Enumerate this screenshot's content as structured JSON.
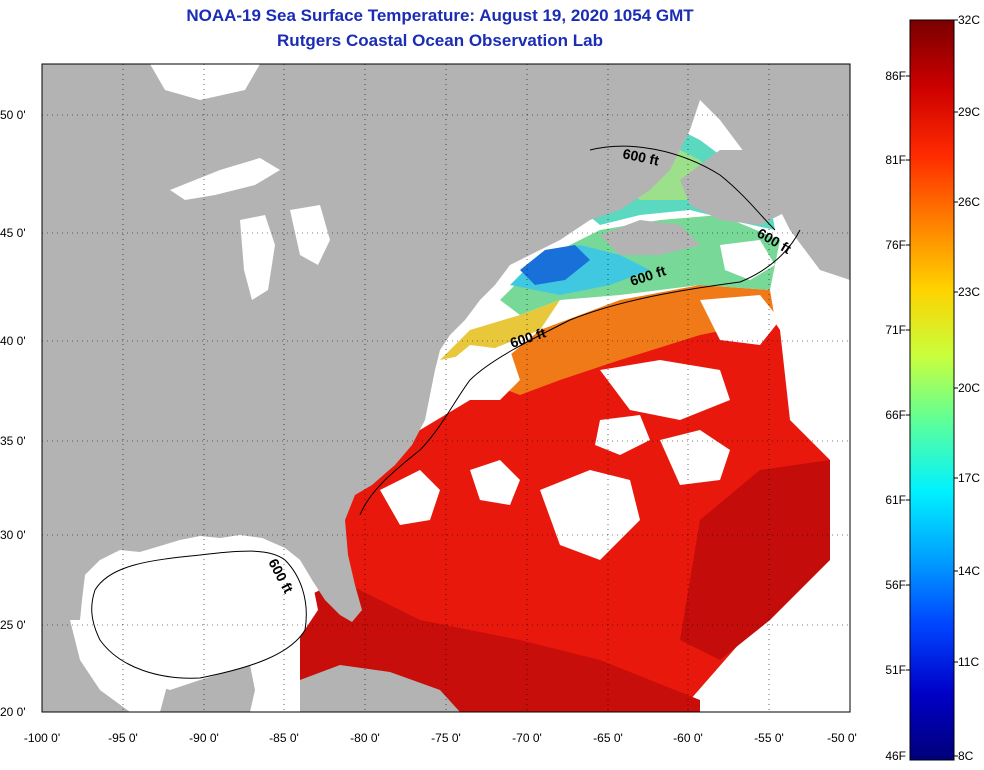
{
  "title_line1": "NOAA-19 Sea Surface Temperature:  August 19, 2020 1054 GMT",
  "title_line2": "Rutgers Coastal Ocean Observation Lab",
  "map": {
    "lat_labels": [
      "50 0'",
      "45 0'",
      "40 0'",
      "35 0'",
      "30 0'",
      "25 0'",
      "20 0'"
    ],
    "lon_labels": [
      "-100 0'",
      "-95 0'",
      "-90 0'",
      "-85 0'",
      "-80 0'",
      "-75 0'",
      "-70 0'",
      "-65 0'",
      "-60 0'",
      "-55 0'",
      "-50 0'"
    ],
    "contour_labels": [
      "600 ft",
      "600 ft",
      "600 ft",
      "600 ft",
      "600 ft"
    ],
    "colors": {
      "land": "#b3b3b3",
      "cloud": "#ffffff",
      "warm": "#e8180c",
      "hot": "#c80e0a",
      "orange": "#f07a18",
      "yellow": "#e8e23a",
      "green": "#7ce07a",
      "cyan": "#38d8e8",
      "blue": "#1870d8",
      "navy": "#0c2a9c"
    }
  },
  "colorbar": {
    "celsius_labels": [
      "32C",
      "29C",
      "26C",
      "23C",
      "20C",
      "17C",
      "14C",
      "11C",
      "8C"
    ],
    "fahrenheit_labels": [
      "86F",
      "81F",
      "76F",
      "71F",
      "66F",
      "61F",
      "56F",
      "51F",
      "46F"
    ],
    "gradient_stops": [
      "#7a0000",
      "#cc0000",
      "#ff2a00",
      "#ff7f00",
      "#ffd200",
      "#c8ff3c",
      "#5aff9c",
      "#00f2ff",
      "#00a0ff",
      "#0044ff",
      "#0000c8",
      "#00007a"
    ]
  }
}
